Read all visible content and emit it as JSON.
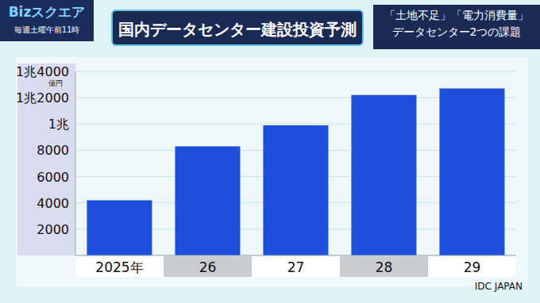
{
  "header": {
    "logo": "Bizスクエア",
    "schedule": "毎週土曜午前11時",
    "topic": [
      "「土地不足」「電力消費量」",
      "データセンター2つの課題"
    ]
  },
  "chart_data": {
    "type": "bar",
    "title": "国内データセンター建設投資予測",
    "categories": [
      "2025年",
      "26",
      "27",
      "28",
      "29"
    ],
    "values": [
      4200,
      8300,
      9900,
      12200,
      12700
    ],
    "color": "#1d4fdc",
    "ylim": [
      0,
      14000
    ],
    "yticks": [
      2000,
      4000,
      6000,
      8000,
      {
        "value": 10000,
        "label": "1兆"
      },
      {
        "value": 12000,
        "label": "1兆2000"
      },
      {
        "value": 14000,
        "label": "1兆4000"
      }
    ],
    "y_label": "億円",
    "grid": true,
    "source": "IDC JAPAN"
  }
}
